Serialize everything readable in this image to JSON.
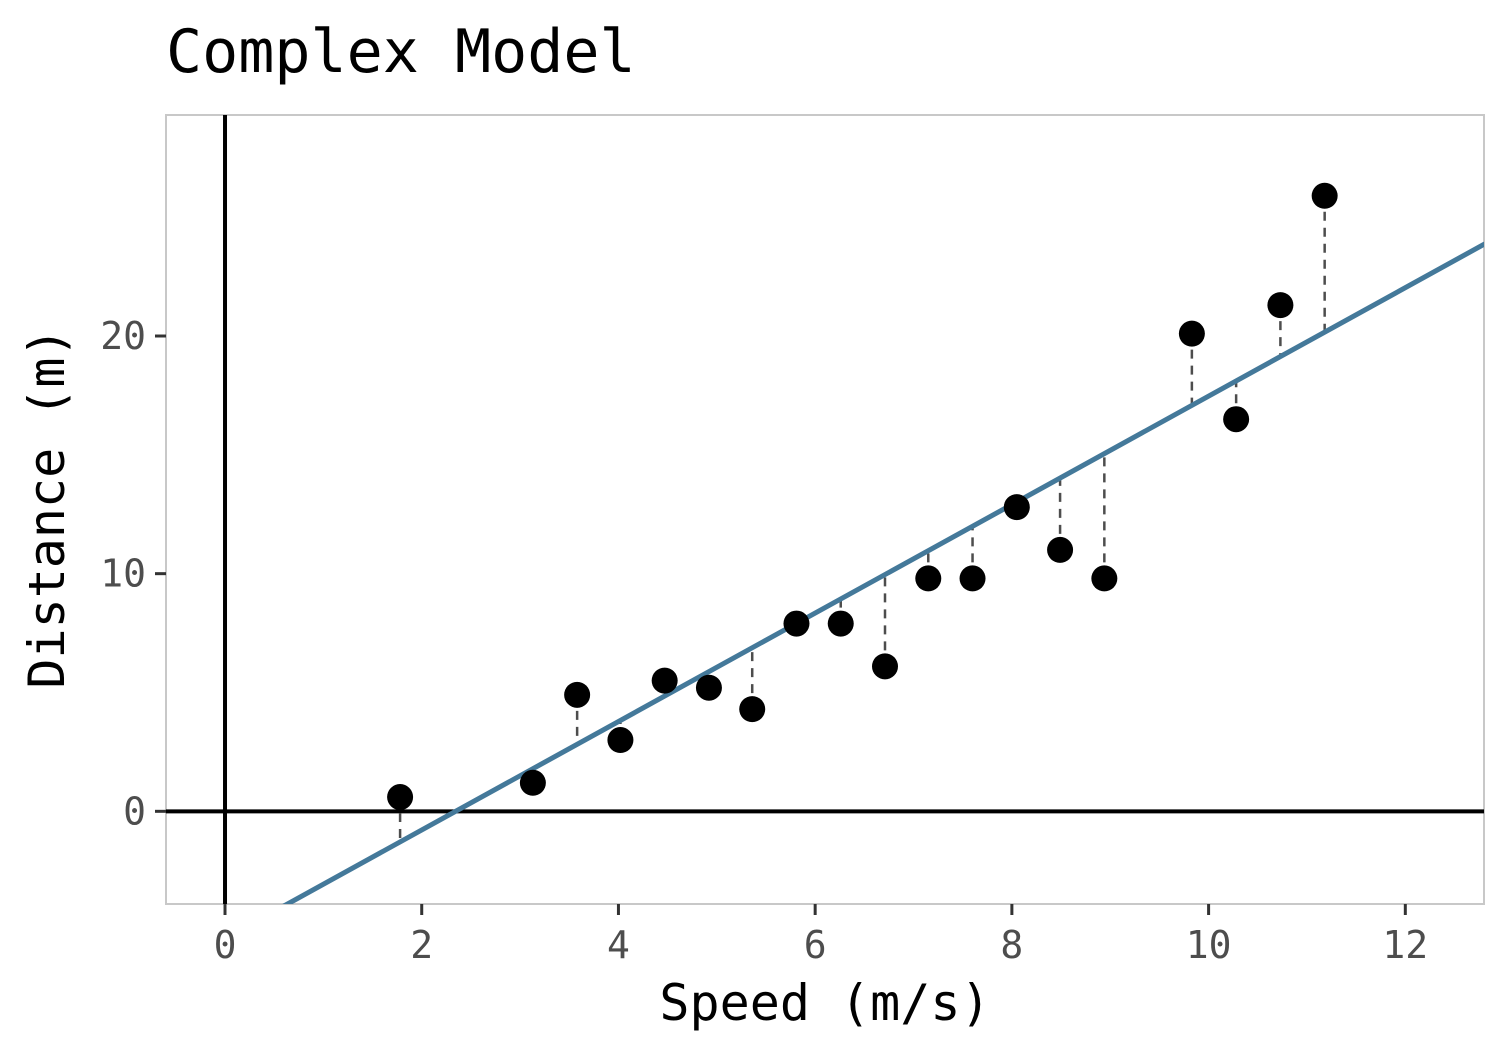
{
  "chart_data": {
    "type": "scatter",
    "title": "Complex Model",
    "xlabel": "Speed (m/s)",
    "ylabel": "Distance (m)",
    "xlim": [
      -0.6,
      12.8
    ],
    "ylim": [
      -3.9,
      29.3
    ],
    "x_ticks": [
      0,
      2,
      4,
      6,
      8,
      10,
      12
    ],
    "y_ticks": [
      0,
      10,
      20
    ],
    "grid": false,
    "reference_lines": {
      "x": 0,
      "y": 0
    },
    "points": [
      {
        "x": 1.78,
        "y": 0.6
      },
      {
        "x": 3.13,
        "y": 1.2
      },
      {
        "x": 3.58,
        "y": 4.9
      },
      {
        "x": 4.02,
        "y": 3.0
      },
      {
        "x": 4.47,
        "y": 5.5
      },
      {
        "x": 4.92,
        "y": 5.2
      },
      {
        "x": 5.36,
        "y": 4.3
      },
      {
        "x": 5.81,
        "y": 7.9
      },
      {
        "x": 6.26,
        "y": 7.9
      },
      {
        "x": 6.71,
        "y": 6.1
      },
      {
        "x": 7.15,
        "y": 9.8
      },
      {
        "x": 7.6,
        "y": 9.8
      },
      {
        "x": 8.05,
        "y": 12.8
      },
      {
        "x": 8.49,
        "y": 11.0
      },
      {
        "x": 8.94,
        "y": 9.8
      },
      {
        "x": 9.83,
        "y": 20.1
      },
      {
        "x": 10.28,
        "y": 16.5
      },
      {
        "x": 10.73,
        "y": 21.3
      },
      {
        "x": 11.18,
        "y": 25.9
      }
    ],
    "fit_line": {
      "intercept": -5.35,
      "slope": 2.282,
      "color": "#44799a"
    },
    "point_color": "#000000",
    "residual_color": "#4d4d4d"
  }
}
